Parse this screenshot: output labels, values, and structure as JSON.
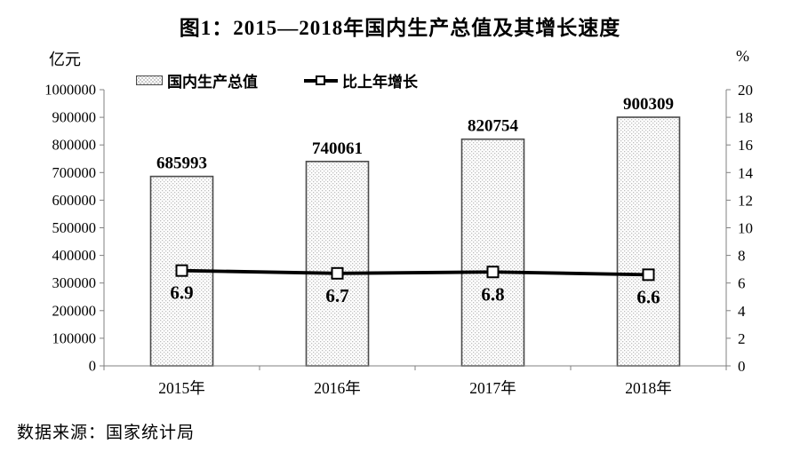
{
  "title": "图1：2015—2018年国内生产总值及其增长速度",
  "left_axis_unit": "亿元",
  "right_axis_unit": "%",
  "legend": {
    "bar_label": "国内生产总值",
    "line_label": "比上年增长"
  },
  "source": "数据来源：国家统计局",
  "colors": {
    "text": "#000000",
    "axis": "#808080",
    "bar_border": "#4a4a4a",
    "bar_dot": "#bdbdbd",
    "bar_bg": "#ffffff",
    "line": "#000000",
    "marker_fill": "#ffffff"
  },
  "chart_data": {
    "type": "bar+line",
    "title": "图1：2015—2018年国内生产总值及其增长速度",
    "categories": [
      "2015年",
      "2016年",
      "2017年",
      "2018年"
    ],
    "series": [
      {
        "name": "国内生产总值",
        "type": "bar",
        "axis": "left",
        "values": [
          685993,
          740061,
          820754,
          900309
        ]
      },
      {
        "name": "比上年增长",
        "type": "line",
        "axis": "right",
        "values": [
          6.9,
          6.7,
          6.8,
          6.6
        ]
      }
    ],
    "left_axis": {
      "label": "亿元",
      "min": 0,
      "max": 1000000,
      "step": 100000
    },
    "right_axis": {
      "label": "%",
      "min": 0,
      "max": 20,
      "step": 2
    },
    "grid": false,
    "legend_position": "top"
  }
}
